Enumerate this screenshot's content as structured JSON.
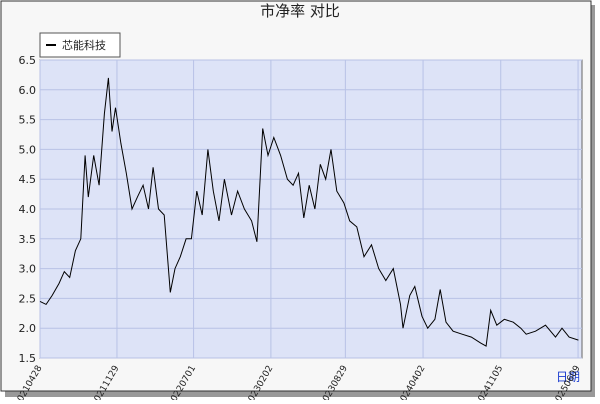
{
  "chart_data": {
    "type": "line",
    "title": "市净率  对比",
    "x_label": "日期",
    "x": [
      "20210428",
      "20210515",
      "20210601",
      "20210620",
      "20210705",
      "20210720",
      "20210805",
      "20210820",
      "20210901",
      "20210910",
      "20210925",
      "20211010",
      "20211025",
      "20211105",
      "20211115",
      "20211125",
      "20211210",
      "20211225",
      "20220110",
      "20220125",
      "20220210",
      "20220225",
      "20220310",
      "20220325",
      "20220410",
      "20220427",
      "20220510",
      "20220525",
      "20220610",
      "20220625",
      "20220710",
      "20220725",
      "20220810",
      "20220825",
      "20220910",
      "20220925",
      "20221015",
      "20221101",
      "20221120",
      "20221210",
      "20221225",
      "20230110",
      "20230125",
      "20230210",
      "20230301",
      "20230320",
      "20230405",
      "20230420",
      "20230505",
      "20230520",
      "20230605",
      "20230620",
      "20230705",
      "20230720",
      "20230805",
      "20230825",
      "20230910",
      "20230930",
      "20231020",
      "20231110",
      "20231130",
      "20231220",
      "20240110",
      "20240130",
      "20240206",
      "20240225",
      "20240310",
      "20240330",
      "20240415",
      "20240505",
      "20240520",
      "20240605",
      "20240625",
      "20240720",
      "20240815",
      "20240910",
      "20240925",
      "20241008",
      "20241025",
      "20241115",
      "20241210",
      "20241231",
      "20250115",
      "20250210",
      "20250310",
      "20250407",
      "20250425",
      "20250515",
      "20250610"
    ],
    "series": [
      {
        "name": "芯能科技",
        "color": "#000000",
        "values": [
          2.45,
          2.4,
          2.55,
          2.75,
          2.95,
          2.85,
          3.3,
          3.5,
          4.9,
          4.2,
          4.9,
          4.4,
          5.6,
          6.2,
          5.3,
          5.7,
          5.1,
          4.6,
          4.0,
          4.2,
          4.4,
          4.0,
          4.7,
          4.0,
          3.9,
          2.6,
          3.0,
          3.2,
          3.5,
          3.5,
          4.3,
          3.9,
          5.0,
          4.3,
          3.8,
          4.5,
          3.9,
          4.3,
          4.0,
          3.8,
          3.45,
          5.35,
          4.9,
          5.2,
          4.9,
          4.5,
          4.4,
          4.6,
          3.85,
          4.4,
          4.0,
          4.75,
          4.5,
          5.0,
          4.3,
          4.1,
          3.8,
          3.7,
          3.2,
          3.4,
          3.0,
          2.8,
          3.0,
          2.4,
          2.0,
          2.55,
          2.7,
          2.2,
          2.0,
          2.15,
          2.65,
          2.1,
          1.95,
          1.9,
          1.85,
          1.75,
          1.7,
          2.3,
          2.05,
          2.15,
          2.1,
          2.0,
          1.9,
          1.95,
          2.05,
          1.85,
          2.0,
          1.85,
          1.8
        ]
      }
    ],
    "xlim": [
      "20210428",
      "20250620"
    ],
    "xticks": [
      "20210428",
      "20211129",
      "20220701",
      "20230202",
      "20230829",
      "20240402",
      "20241105",
      "20250609"
    ],
    "ylim": [
      1.5,
      6.5
    ],
    "yticks": [
      1.5,
      {
        "value": 2,
        "label": "2.0"
      },
      2.5,
      {
        "value": 3,
        "label": "3.0"
      },
      3.5,
      {
        "value": 4,
        "label": "4.0"
      },
      4.5,
      {
        "value": 5,
        "label": "5.0"
      },
      5.5,
      {
        "value": 6,
        "label": "6.0"
      },
      6.5
    ],
    "grid": true,
    "legend": "top-left"
  }
}
